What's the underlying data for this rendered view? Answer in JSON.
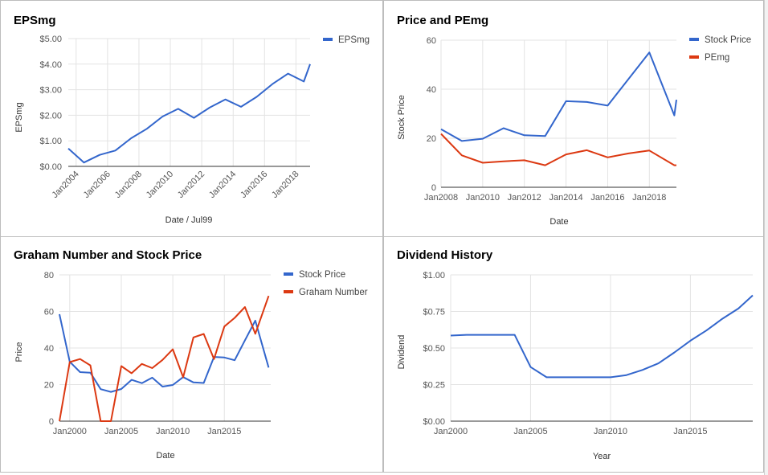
{
  "colors": {
    "blue": "#3366cc",
    "red": "#dc3912"
  },
  "chart_data": [
    {
      "id": "eps",
      "type": "line",
      "title": "EPSmg",
      "xlabel": "Date / Jul99",
      "ylabel": "EPSmg",
      "x_is_date": true,
      "xlim": [
        2003.5,
        2018.9
      ],
      "ylim": [
        0,
        5
      ],
      "yticks": [
        0,
        1,
        2,
        3,
        4,
        5
      ],
      "ytick_labels": [
        "$0.00",
        "$1.00",
        "$2.00",
        "$3.00",
        "$4.00",
        "$5.00"
      ],
      "xticks": [
        2004,
        2006,
        2008,
        2010,
        2012,
        2014,
        2016,
        2018
      ],
      "xtick_labels": [
        "Jan2004",
        "Jan2006",
        "Jan2008",
        "Jan2010",
        "Jan2012",
        "Jan2014",
        "Jan2016",
        "Jan2018"
      ],
      "xtick_rotate": true,
      "legend_position": "right",
      "series": [
        {
          "name": "EPSmg",
          "color": "#3366cc",
          "x": [
            2003.5,
            2004.5,
            2005.5,
            2006.5,
            2007.5,
            2008.5,
            2009.5,
            2010.5,
            2011.5,
            2012.5,
            2013.5,
            2014.5,
            2015.5,
            2016.5,
            2017.5,
            2018.5,
            2018.9
          ],
          "y": [
            0.7,
            0.15,
            0.45,
            0.62,
            1.1,
            1.47,
            1.95,
            2.25,
            1.9,
            2.3,
            2.62,
            2.33,
            2.72,
            3.22,
            3.63,
            3.32,
            4.0
          ]
        }
      ]
    },
    {
      "id": "pe",
      "type": "line",
      "title": "Price and PEmg",
      "xlabel": "Date",
      "ylabel": "Stock Price",
      "x_is_date": true,
      "xlim": [
        2008,
        2019.3
      ],
      "ylim": [
        0,
        60
      ],
      "yticks": [
        0,
        20,
        40,
        60
      ],
      "ytick_labels": [
        "0",
        "20",
        "40",
        "60"
      ],
      "xticks": [
        2008,
        2010,
        2012,
        2014,
        2016,
        2018
      ],
      "xtick_labels": [
        "Jan2008",
        "Jan2010",
        "Jan2012",
        "Jan2014",
        "Jan2016",
        "Jan2018"
      ],
      "xtick_rotate": false,
      "legend_position": "right",
      "series": [
        {
          "name": "Stock Price",
          "color": "#3366cc",
          "x": [
            2008,
            2009,
            2010,
            2011,
            2012,
            2013,
            2014,
            2015,
            2016,
            2017,
            2018,
            2019.2,
            2019.3
          ],
          "y": [
            23.7,
            18.9,
            19.8,
            24.1,
            21.2,
            20.9,
            35.1,
            34.8,
            33.3,
            44.2,
            55.0,
            29.3,
            35.7
          ]
        },
        {
          "name": "PEmg",
          "color": "#dc3912",
          "x": [
            2008,
            2009,
            2010,
            2011,
            2012,
            2013,
            2014,
            2015,
            2016,
            2017,
            2018,
            2019.2,
            2019.3
          ],
          "y": [
            21.8,
            13.0,
            10.0,
            10.6,
            11.0,
            9.0,
            13.4,
            15.1,
            12.2,
            13.8,
            15.0,
            9.0,
            9.0
          ]
        }
      ]
    },
    {
      "id": "graham",
      "type": "line",
      "title": "Graham Number and Stock Price",
      "xlabel": "Date",
      "ylabel": "Price",
      "x_is_date": true,
      "xlim": [
        1999,
        2019.5
      ],
      "ylim": [
        0,
        80
      ],
      "yticks": [
        0,
        20,
        40,
        60,
        80
      ],
      "ytick_labels": [
        "0",
        "20",
        "40",
        "60",
        "80"
      ],
      "xticks": [
        2000,
        2005,
        2010,
        2015
      ],
      "xtick_labels": [
        "Jan2000",
        "Jan2005",
        "Jan2010",
        "Jan2015"
      ],
      "xtick_rotate": false,
      "legend_position": "right",
      "series": [
        {
          "name": "Stock Price",
          "color": "#3366cc",
          "x": [
            1999,
            2000,
            2001,
            2002,
            2003,
            2004,
            2005,
            2006,
            2007,
            2008,
            2009,
            2010,
            2011,
            2012,
            2013,
            2014,
            2015,
            2016,
            2017,
            2018,
            2019.3
          ],
          "y": [
            58.5,
            32.5,
            26.8,
            26.5,
            17.5,
            16.0,
            17.6,
            22.6,
            20.8,
            23.8,
            18.9,
            19.8,
            24.1,
            21.2,
            20.9,
            35.1,
            34.8,
            33.3,
            44.2,
            55.0,
            29.3
          ]
        },
        {
          "name": "Graham Number",
          "color": "#dc3912",
          "x": [
            1999,
            2000,
            2001,
            2002,
            2003,
            2004,
            2005,
            2006,
            2007,
            2008,
            2009,
            2010,
            2011,
            2012,
            2013,
            2014,
            2015,
            2016,
            2017,
            2018,
            2019.3
          ],
          "y": [
            0,
            32.3,
            34.0,
            30.5,
            0,
            0,
            30.1,
            26.2,
            31.3,
            29.0,
            33.5,
            39.3,
            24.0,
            45.8,
            47.7,
            34.0,
            51.8,
            56.5,
            62.4,
            47.8,
            68.5
          ]
        }
      ]
    },
    {
      "id": "dividend",
      "type": "line",
      "title": "Dividend History",
      "xlabel": "Year",
      "ylabel": "Dividend",
      "x_is_date": true,
      "xlim": [
        2000,
        2018.9
      ],
      "ylim": [
        0,
        1
      ],
      "yticks": [
        0,
        0.25,
        0.5,
        0.75,
        1.0
      ],
      "ytick_labels": [
        "$0.00",
        "$0.25",
        "$0.50",
        "$0.75",
        "$1.00"
      ],
      "xticks": [
        2000,
        2005,
        2010,
        2015
      ],
      "xtick_labels": [
        "Jan2000",
        "Jan2005",
        "Jan2010",
        "Jan2015"
      ],
      "xtick_rotate": false,
      "legend_position": "none",
      "series": [
        {
          "name": "",
          "color": "#3366cc",
          "x": [
            2000,
            2001,
            2002,
            2003,
            2004,
            2005,
            2006,
            2007,
            2008,
            2009,
            2010,
            2011,
            2012,
            2013,
            2014,
            2015,
            2016,
            2017,
            2018,
            2018.9
          ],
          "y": [
            0.585,
            0.59,
            0.59,
            0.59,
            0.59,
            0.37,
            0.3,
            0.3,
            0.3,
            0.3,
            0.3,
            0.315,
            0.35,
            0.395,
            0.47,
            0.55,
            0.62,
            0.7,
            0.77,
            0.86
          ]
        }
      ]
    }
  ]
}
